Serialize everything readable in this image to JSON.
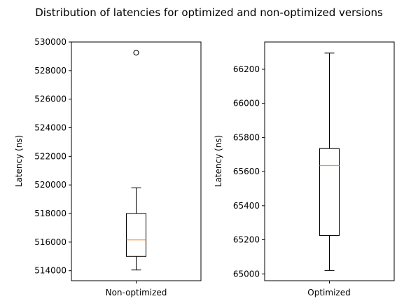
{
  "chart_data": [
    {
      "type": "boxplot",
      "title": "Distribution of latencies for optimized and non-optimized versions",
      "categories": [
        "Non-optimized"
      ],
      "ylabel": "Latency (ns)",
      "xlabel": "",
      "ylim": [
        513300,
        530000
      ],
      "yticks": [
        514000,
        516000,
        518000,
        520000,
        522000,
        524000,
        526000,
        528000,
        530000
      ],
      "boxes": [
        {
          "category": "Non-optimized",
          "whislo": 514050,
          "q1": 515000,
          "med": 516150,
          "q3": 518000,
          "whishi": 519800,
          "fliers": [
            529250
          ]
        }
      ],
      "grid": false,
      "colors": {
        "box": "#000000",
        "median": "#ff7f0e"
      }
    },
    {
      "type": "boxplot",
      "categories": [
        "Optimized"
      ],
      "ylabel": "Latency (ns)",
      "xlabel": "",
      "ylim": [
        64960,
        66360
      ],
      "yticks": [
        65000,
        65200,
        65400,
        65600,
        65800,
        66000,
        66200
      ],
      "boxes": [
        {
          "category": "Optimized",
          "whislo": 65020,
          "q1": 65225,
          "med": 65635,
          "q3": 65735,
          "whishi": 66295,
          "fliers": []
        }
      ],
      "grid": false,
      "colors": {
        "box": "#000000",
        "median": "#ff7f0e"
      }
    }
  ]
}
